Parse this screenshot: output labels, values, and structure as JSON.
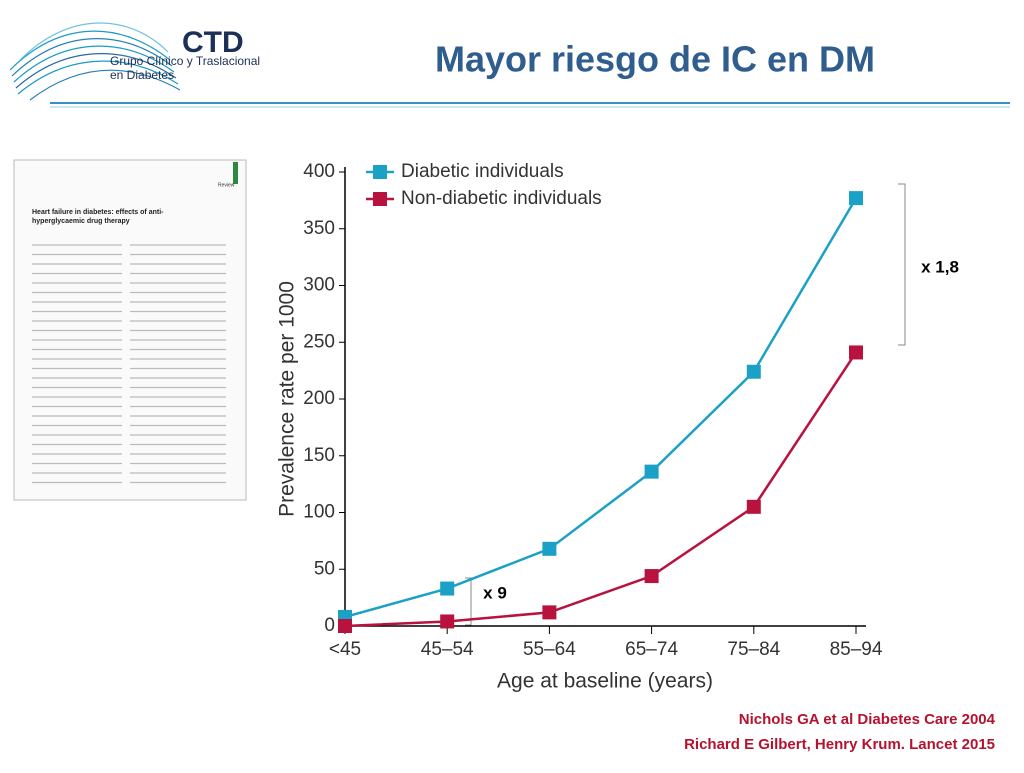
{
  "header": {
    "logo_title": "CTD",
    "logo_subtitle_1": "Grupo Clínico y Traslacional",
    "logo_subtitle_2": "en Diabetes",
    "title": "Mayor riesgo de IC en DM"
  },
  "thumbnail": {
    "label": "Review",
    "title": "Heart failure in diabetes: effects of anti-hyperglycaemic drug therapy"
  },
  "chart_data": {
    "type": "line",
    "y_label": "Prevalence rate per 1000",
    "x_label": "Age at baseline (years)",
    "categories": [
      "<45",
      "45–54",
      "55–64",
      "65–74",
      "75–84",
      "85–94"
    ],
    "series": [
      {
        "name": "Diabetic individuals",
        "color": "#1ba1c6",
        "values": [
          8,
          33,
          68,
          136,
          224,
          377
        ]
      },
      {
        "name": "Non-diabetic individuals",
        "color": "#b8123e",
        "values": [
          0,
          4,
          12,
          44,
          105,
          241
        ]
      }
    ],
    "ylim": [
      0,
      400
    ],
    "yticks": [
      0,
      50,
      100,
      150,
      200,
      250,
      300,
      350,
      400
    ],
    "legend": "upper-left",
    "annotations": [
      "x 1,8",
      "x 9"
    ]
  },
  "references": [
    "Nichols GA et al Diabetes Care 2004",
    "Richard E Gilbert, Henry Krum. Lancet 2015"
  ]
}
